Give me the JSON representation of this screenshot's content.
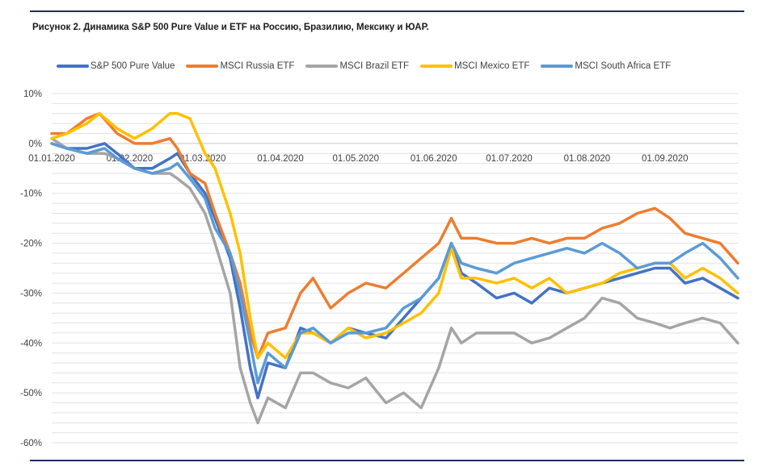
{
  "caption": "Рисунок 2. Динамика S&P 500 Pure Value и ETF на Россию, Бразилию, Мексику и ЮАР.",
  "chart_data": {
    "type": "line",
    "title": "Рисунок 2. Динамика S&P 500 Pure Value и ETF на Россию, Бразилию, Мексику и ЮАР.",
    "xlabel": "",
    "ylabel": "",
    "ylim": [
      -60,
      10
    ],
    "y_ticks": [
      "10%",
      "0%",
      "-10%",
      "-20%",
      "-30%",
      "-40%",
      "-50%",
      "-60%"
    ],
    "x_ticks": [
      "01.01.2020",
      "01.02.2020",
      "01.03.2020",
      "01.04.2020",
      "01.05.2020",
      "01.06.2020",
      "01.07.2020",
      "01.08.2020",
      "01.09.2020"
    ],
    "x_range": [
      "2020-01-01",
      "2020-09-30"
    ],
    "grid": true,
    "legend_position": "top",
    "series": [
      {
        "name": "S&P 500 Pure Value",
        "color": "#4472c4",
        "points": [
          [
            "2020-01-01",
            0
          ],
          [
            "2020-01-07",
            -1
          ],
          [
            "2020-01-15",
            -1
          ],
          [
            "2020-01-22",
            0
          ],
          [
            "2020-01-27",
            -2
          ],
          [
            "2020-02-03",
            -5
          ],
          [
            "2020-02-10",
            -5
          ],
          [
            "2020-02-17",
            -3
          ],
          [
            "2020-02-20",
            -2
          ],
          [
            "2020-02-25",
            -6
          ],
          [
            "2020-03-02",
            -10
          ],
          [
            "2020-03-06",
            -15
          ],
          [
            "2020-03-12",
            -23
          ],
          [
            "2020-03-16",
            -33
          ],
          [
            "2020-03-20",
            -45
          ],
          [
            "2020-03-23",
            -51
          ],
          [
            "2020-03-27",
            -44
          ],
          [
            "2020-04-03",
            -45
          ],
          [
            "2020-04-09",
            -37
          ],
          [
            "2020-04-14",
            -38
          ],
          [
            "2020-04-21",
            -40
          ],
          [
            "2020-04-28",
            -37
          ],
          [
            "2020-05-05",
            -38
          ],
          [
            "2020-05-13",
            -39
          ],
          [
            "2020-05-20",
            -35
          ],
          [
            "2020-05-27",
            -31
          ],
          [
            "2020-06-03",
            -27
          ],
          [
            "2020-06-08",
            -20
          ],
          [
            "2020-06-12",
            -26
          ],
          [
            "2020-06-18",
            -28
          ],
          [
            "2020-06-26",
            -31
          ],
          [
            "2020-07-03",
            -30
          ],
          [
            "2020-07-10",
            -32
          ],
          [
            "2020-07-17",
            -29
          ],
          [
            "2020-07-24",
            -30
          ],
          [
            "2020-07-31",
            -29
          ],
          [
            "2020-08-07",
            -28
          ],
          [
            "2020-08-14",
            -27
          ],
          [
            "2020-08-21",
            -26
          ],
          [
            "2020-08-28",
            -25
          ],
          [
            "2020-09-03",
            -25
          ],
          [
            "2020-09-09",
            -28
          ],
          [
            "2020-09-16",
            -27
          ],
          [
            "2020-09-23",
            -29
          ],
          [
            "2020-09-30",
            -31
          ]
        ]
      },
      {
        "name": "MSCI Russia ETF",
        "color": "#ed7d31",
        "points": [
          [
            "2020-01-01",
            2
          ],
          [
            "2020-01-07",
            2
          ],
          [
            "2020-01-15",
            5
          ],
          [
            "2020-01-20",
            6
          ],
          [
            "2020-01-27",
            2
          ],
          [
            "2020-02-03",
            0
          ],
          [
            "2020-02-10",
            0
          ],
          [
            "2020-02-17",
            1
          ],
          [
            "2020-02-20",
            -1
          ],
          [
            "2020-02-25",
            -6
          ],
          [
            "2020-03-02",
            -8
          ],
          [
            "2020-03-06",
            -14
          ],
          [
            "2020-03-12",
            -22
          ],
          [
            "2020-03-16",
            -28
          ],
          [
            "2020-03-20",
            -38
          ],
          [
            "2020-03-23",
            -43
          ],
          [
            "2020-03-27",
            -38
          ],
          [
            "2020-04-03",
            -37
          ],
          [
            "2020-04-09",
            -30
          ],
          [
            "2020-04-14",
            -27
          ],
          [
            "2020-04-21",
            -33
          ],
          [
            "2020-04-28",
            -30
          ],
          [
            "2020-05-05",
            -28
          ],
          [
            "2020-05-13",
            -29
          ],
          [
            "2020-05-20",
            -26
          ],
          [
            "2020-05-27",
            -23
          ],
          [
            "2020-06-03",
            -20
          ],
          [
            "2020-06-08",
            -15
          ],
          [
            "2020-06-12",
            -19
          ],
          [
            "2020-06-18",
            -19
          ],
          [
            "2020-06-26",
            -20
          ],
          [
            "2020-07-03",
            -20
          ],
          [
            "2020-07-10",
            -19
          ],
          [
            "2020-07-17",
            -20
          ],
          [
            "2020-07-24",
            -19
          ],
          [
            "2020-07-31",
            -19
          ],
          [
            "2020-08-07",
            -17
          ],
          [
            "2020-08-14",
            -16
          ],
          [
            "2020-08-21",
            -14
          ],
          [
            "2020-08-28",
            -13
          ],
          [
            "2020-09-03",
            -15
          ],
          [
            "2020-09-09",
            -18
          ],
          [
            "2020-09-16",
            -19
          ],
          [
            "2020-09-23",
            -20
          ],
          [
            "2020-09-30",
            -24
          ]
        ]
      },
      {
        "name": "MSCI Brazil ETF",
        "color": "#a5a5a5",
        "points": [
          [
            "2020-01-01",
            1
          ],
          [
            "2020-01-07",
            -1
          ],
          [
            "2020-01-15",
            -2
          ],
          [
            "2020-01-22",
            -2
          ],
          [
            "2020-01-27",
            -3
          ],
          [
            "2020-02-03",
            -5
          ],
          [
            "2020-02-10",
            -6
          ],
          [
            "2020-02-17",
            -6
          ],
          [
            "2020-02-20",
            -7
          ],
          [
            "2020-02-25",
            -9
          ],
          [
            "2020-03-02",
            -14
          ],
          [
            "2020-03-06",
            -20
          ],
          [
            "2020-03-12",
            -30
          ],
          [
            "2020-03-16",
            -45
          ],
          [
            "2020-03-20",
            -52
          ],
          [
            "2020-03-23",
            -56
          ],
          [
            "2020-03-27",
            -51
          ],
          [
            "2020-04-03",
            -53
          ],
          [
            "2020-04-09",
            -46
          ],
          [
            "2020-04-14",
            -46
          ],
          [
            "2020-04-21",
            -48
          ],
          [
            "2020-04-28",
            -49
          ],
          [
            "2020-05-05",
            -47
          ],
          [
            "2020-05-13",
            -52
          ],
          [
            "2020-05-20",
            -50
          ],
          [
            "2020-05-27",
            -53
          ],
          [
            "2020-06-03",
            -45
          ],
          [
            "2020-06-08",
            -37
          ],
          [
            "2020-06-12",
            -40
          ],
          [
            "2020-06-18",
            -38
          ],
          [
            "2020-06-26",
            -38
          ],
          [
            "2020-07-03",
            -38
          ],
          [
            "2020-07-10",
            -40
          ],
          [
            "2020-07-17",
            -39
          ],
          [
            "2020-07-24",
            -37
          ],
          [
            "2020-07-31",
            -35
          ],
          [
            "2020-08-07",
            -31
          ],
          [
            "2020-08-14",
            -32
          ],
          [
            "2020-08-21",
            -35
          ],
          [
            "2020-08-28",
            -36
          ],
          [
            "2020-09-03",
            -37
          ],
          [
            "2020-09-09",
            -36
          ],
          [
            "2020-09-16",
            -35
          ],
          [
            "2020-09-23",
            -36
          ],
          [
            "2020-09-30",
            -40
          ]
        ]
      },
      {
        "name": "MSCI Mexico ETF",
        "color": "#ffc000",
        "points": [
          [
            "2020-01-01",
            1
          ],
          [
            "2020-01-07",
            2
          ],
          [
            "2020-01-15",
            4
          ],
          [
            "2020-01-20",
            6
          ],
          [
            "2020-01-27",
            3
          ],
          [
            "2020-02-03",
            1
          ],
          [
            "2020-02-10",
            3
          ],
          [
            "2020-02-17",
            6
          ],
          [
            "2020-02-20",
            6
          ],
          [
            "2020-02-25",
            5
          ],
          [
            "2020-03-02",
            -2
          ],
          [
            "2020-03-06",
            -5
          ],
          [
            "2020-03-12",
            -14
          ],
          [
            "2020-03-16",
            -22
          ],
          [
            "2020-03-20",
            -35
          ],
          [
            "2020-03-23",
            -43
          ],
          [
            "2020-03-27",
            -40
          ],
          [
            "2020-04-03",
            -43
          ],
          [
            "2020-04-09",
            -38
          ],
          [
            "2020-04-14",
            -38
          ],
          [
            "2020-04-21",
            -40
          ],
          [
            "2020-04-28",
            -37
          ],
          [
            "2020-05-05",
            -39
          ],
          [
            "2020-05-13",
            -38
          ],
          [
            "2020-05-20",
            -36
          ],
          [
            "2020-05-27",
            -34
          ],
          [
            "2020-06-03",
            -30
          ],
          [
            "2020-06-08",
            -21
          ],
          [
            "2020-06-12",
            -27
          ],
          [
            "2020-06-18",
            -27
          ],
          [
            "2020-06-26",
            -28
          ],
          [
            "2020-07-03",
            -27
          ],
          [
            "2020-07-10",
            -29
          ],
          [
            "2020-07-17",
            -27
          ],
          [
            "2020-07-24",
            -30
          ],
          [
            "2020-07-31",
            -29
          ],
          [
            "2020-08-07",
            -28
          ],
          [
            "2020-08-14",
            -26
          ],
          [
            "2020-08-21",
            -25
          ],
          [
            "2020-08-28",
            -24
          ],
          [
            "2020-09-03",
            -24
          ],
          [
            "2020-09-09",
            -27
          ],
          [
            "2020-09-16",
            -25
          ],
          [
            "2020-09-23",
            -27
          ],
          [
            "2020-09-30",
            -30
          ]
        ]
      },
      {
        "name": "MSCI South Africa ETF",
        "color": "#5b9bd5",
        "points": [
          [
            "2020-01-01",
            0
          ],
          [
            "2020-01-07",
            -1
          ],
          [
            "2020-01-15",
            -2
          ],
          [
            "2020-01-22",
            -1
          ],
          [
            "2020-01-27",
            -3
          ],
          [
            "2020-02-03",
            -5
          ],
          [
            "2020-02-10",
            -6
          ],
          [
            "2020-02-17",
            -5
          ],
          [
            "2020-02-20",
            -4
          ],
          [
            "2020-02-25",
            -7
          ],
          [
            "2020-03-02",
            -11
          ],
          [
            "2020-03-06",
            -17
          ],
          [
            "2020-03-12",
            -22
          ],
          [
            "2020-03-16",
            -30
          ],
          [
            "2020-03-20",
            -40
          ],
          [
            "2020-03-23",
            -48
          ],
          [
            "2020-03-27",
            -42
          ],
          [
            "2020-04-03",
            -45
          ],
          [
            "2020-04-09",
            -38
          ],
          [
            "2020-04-14",
            -37
          ],
          [
            "2020-04-21",
            -40
          ],
          [
            "2020-04-28",
            -38
          ],
          [
            "2020-05-05",
            -38
          ],
          [
            "2020-05-13",
            -37
          ],
          [
            "2020-05-20",
            -33
          ],
          [
            "2020-05-27",
            -31
          ],
          [
            "2020-06-03",
            -27
          ],
          [
            "2020-06-08",
            -20
          ],
          [
            "2020-06-12",
            -24
          ],
          [
            "2020-06-18",
            -25
          ],
          [
            "2020-06-26",
            -26
          ],
          [
            "2020-07-03",
            -24
          ],
          [
            "2020-07-10",
            -23
          ],
          [
            "2020-07-17",
            -22
          ],
          [
            "2020-07-24",
            -21
          ],
          [
            "2020-07-31",
            -22
          ],
          [
            "2020-08-07",
            -20
          ],
          [
            "2020-08-14",
            -22
          ],
          [
            "2020-08-21",
            -25
          ],
          [
            "2020-08-28",
            -24
          ],
          [
            "2020-09-03",
            -24
          ],
          [
            "2020-09-09",
            -22
          ],
          [
            "2020-09-16",
            -20
          ],
          [
            "2020-09-23",
            -23
          ],
          [
            "2020-09-30",
            -27
          ]
        ]
      }
    ]
  }
}
